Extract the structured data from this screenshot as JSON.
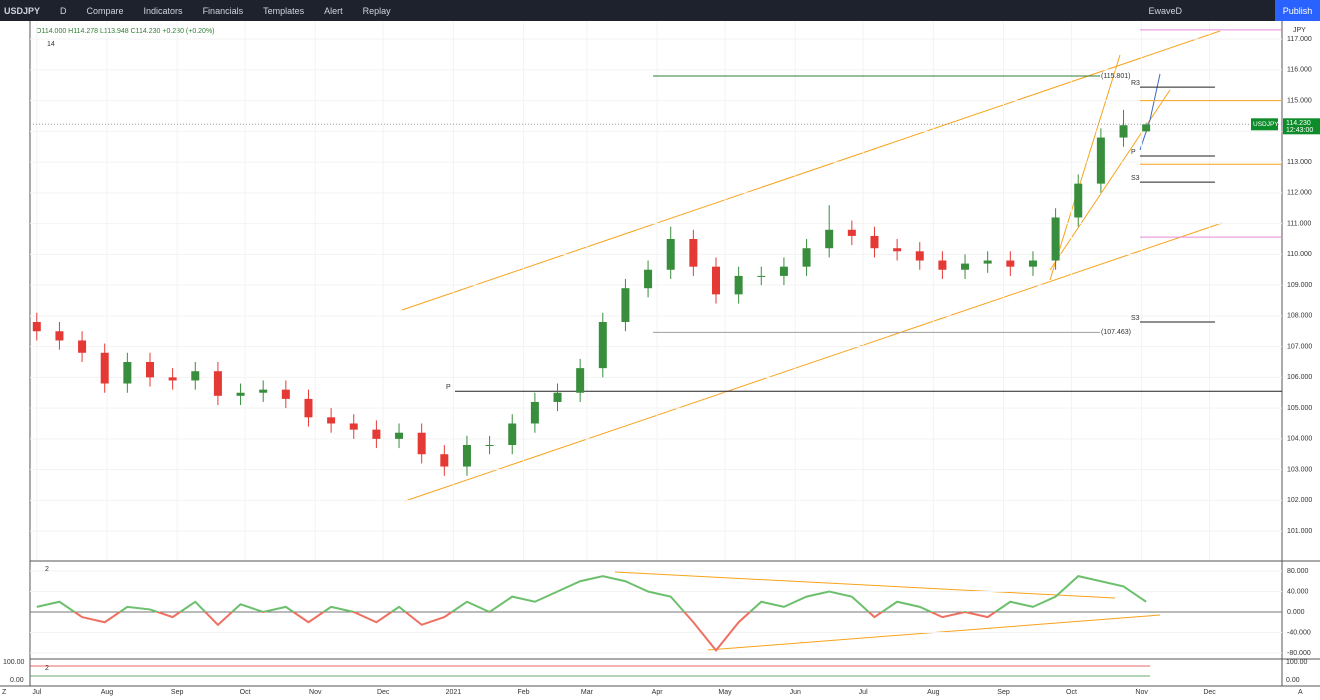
{
  "toolbar": {
    "symbol": "USDJPY",
    "interval": "D",
    "buttons": [
      "Compare",
      "Indicators",
      "Financials",
      "Templates",
      "Alert",
      "Replay"
    ],
    "user": "EwaveD",
    "publish": "Publish"
  },
  "chart_data": [
    {
      "type": "candlestick",
      "legend": "O114.000 H114.278 L113.948 C114.230 +0.230 (+0.20%)",
      "indicator_count": "14",
      "currency": "JPY",
      "up_color": "#388e3c",
      "down_color": "#e53935",
      "x": [
        0,
        10,
        20,
        30,
        40,
        50,
        60,
        70,
        80,
        90,
        100,
        110,
        120,
        130,
        140,
        150,
        160,
        170,
        180,
        190,
        200,
        210,
        220,
        230,
        240,
        250,
        260,
        270,
        280,
        290,
        300,
        310,
        320,
        330,
        340,
        350,
        360,
        370,
        380,
        390,
        400,
        410,
        420,
        430,
        440,
        450,
        460,
        470,
        480,
        490
      ],
      "open": [
        107.8,
        107.5,
        107.2,
        106.8,
        105.8,
        106.5,
        106.0,
        105.9,
        106.2,
        105.4,
        105.5,
        105.6,
        105.3,
        104.7,
        104.5,
        104.3,
        104.0,
        104.2,
        103.5,
        103.1,
        103.8,
        103.8,
        104.5,
        105.2,
        105.5,
        106.3,
        107.8,
        108.9,
        109.5,
        110.5,
        109.6,
        108.7,
        109.3,
        109.3,
        109.6,
        110.2,
        110.8,
        110.6,
        110.2,
        110.1,
        109.8,
        109.5,
        109.7,
        109.8,
        109.6,
        109.8,
        111.2,
        112.3,
        113.8,
        114.0
      ],
      "high": [
        108.1,
        107.8,
        107.5,
        107.1,
        106.8,
        106.8,
        106.3,
        106.5,
        106.5,
        105.8,
        105.9,
        105.9,
        105.6,
        105.0,
        104.8,
        104.6,
        104.5,
        104.5,
        103.8,
        104.1,
        104.1,
        104.8,
        105.5,
        105.8,
        106.6,
        108.1,
        109.2,
        109.8,
        110.9,
        110.8,
        109.9,
        109.6,
        109.6,
        109.9,
        110.5,
        111.6,
        111.1,
        110.9,
        110.5,
        110.4,
        110.1,
        110.0,
        110.1,
        110.1,
        110.1,
        111.5,
        112.6,
        114.1,
        114.7,
        114.278
      ],
      "low": [
        107.2,
        106.9,
        106.5,
        105.5,
        105.5,
        105.7,
        105.6,
        105.6,
        105.1,
        105.1,
        105.2,
        105.0,
        104.4,
        104.2,
        104.0,
        103.7,
        103.7,
        103.2,
        102.8,
        102.8,
        103.5,
        103.5,
        104.2,
        104.9,
        105.2,
        106.0,
        107.5,
        108.6,
        109.2,
        109.3,
        108.4,
        108.4,
        109.0,
        109.0,
        109.3,
        109.9,
        110.3,
        109.9,
        109.8,
        109.5,
        109.2,
        109.2,
        109.4,
        109.3,
        109.3,
        109.5,
        110.9,
        112.0,
        113.5,
        113.948
      ],
      "close": [
        107.5,
        107.2,
        106.8,
        105.8,
        106.5,
        106.0,
        105.9,
        106.2,
        105.4,
        105.5,
        105.6,
        105.3,
        104.7,
        104.5,
        104.3,
        104.0,
        104.2,
        103.5,
        103.1,
        103.8,
        103.8,
        104.5,
        105.2,
        105.5,
        106.3,
        107.8,
        108.9,
        109.5,
        110.5,
        109.6,
        108.7,
        109.3,
        109.3,
        109.6,
        110.2,
        110.8,
        110.6,
        110.2,
        110.1,
        109.8,
        109.5,
        109.7,
        109.8,
        109.6,
        109.8,
        111.2,
        112.3,
        113.8,
        114.2,
        114.23
      ],
      "last_price": {
        "symbol": "USDJPY",
        "value": 114.23,
        "label": "114.230",
        "countdown": "12:43:00"
      },
      "xlim": [
        -3,
        550
      ],
      "xticks": [
        {
          "value": 0,
          "label": "Jul"
        },
        {
          "value": 31,
          "label": "Aug"
        },
        {
          "value": 62,
          "label": "Sep"
        },
        {
          "value": 92,
          "label": "Oct"
        },
        {
          "value": 123,
          "label": "Nov"
        },
        {
          "value": 153,
          "label": "Dec"
        },
        {
          "value": 184,
          "label": "2021"
        },
        {
          "value": 215,
          "label": "Feb"
        },
        {
          "value": 243,
          "label": "Mar"
        },
        {
          "value": 274,
          "label": "Apr"
        },
        {
          "value": 304,
          "label": "May"
        },
        {
          "value": 335,
          "label": "Jun"
        },
        {
          "value": 365,
          "label": "Jul"
        },
        {
          "value": 396,
          "label": "Aug"
        },
        {
          "value": 427,
          "label": "Sep"
        },
        {
          "value": 457,
          "label": "Oct"
        },
        {
          "value": 488,
          "label": "Nov"
        },
        {
          "value": 518,
          "label": "Dec"
        }
      ],
      "ylim": [
        100.06,
        117.59
      ],
      "yticks": [
        {
          "value": 101,
          "label": "101.000"
        },
        {
          "value": 102,
          "label": "102.000"
        },
        {
          "value": 103,
          "label": "103.000"
        },
        {
          "value": 104,
          "label": "104.000"
        },
        {
          "value": 105,
          "label": "105.000"
        },
        {
          "value": 106,
          "label": "106.000"
        },
        {
          "value": 107,
          "label": "107.000"
        },
        {
          "value": 108,
          "label": "108.000"
        },
        {
          "value": 109,
          "label": "109.000"
        },
        {
          "value": 110,
          "label": "110.000"
        },
        {
          "value": 111,
          "label": "111.000"
        },
        {
          "value": 112,
          "label": "112.000"
        },
        {
          "value": 113,
          "label": "113.000"
        },
        {
          "value": 114,
          "label": "114.000"
        },
        {
          "value": 115,
          "label": "115.000"
        },
        {
          "value": 116,
          "label": "116.000"
        },
        {
          "value": 117,
          "label": "117.000"
        }
      ],
      "pivots": [
        {
          "label": "R3",
          "value": 115.44
        },
        {
          "label": "P",
          "value": 113.2
        },
        {
          "label": "S3",
          "value": 112.35
        },
        {
          "label": "S3",
          "value": 107.8
        },
        {
          "label": "P",
          "value": 105.55
        }
      ],
      "annotations": [
        {
          "text": "(115.801)",
          "value": 115.801,
          "color": "#2e7d32"
        },
        {
          "text": "(107.463)",
          "value": 107.463,
          "color": "#9e9e9e"
        }
      ],
      "levels": [
        {
          "value": 117.3,
          "color": "#e58ad9"
        },
        {
          "value": 115.0,
          "color": "#f7a21b"
        },
        {
          "value": 112.93,
          "color": "#f7a21b"
        },
        {
          "value": 110.56,
          "color": "#e58ad9"
        }
      ]
    },
    {
      "type": "oscillator",
      "legend": "2",
      "color_above": "#6cbf6c",
      "color_below": "#ef7061",
      "x": [
        0,
        10,
        20,
        30,
        40,
        50,
        60,
        70,
        80,
        90,
        100,
        110,
        120,
        130,
        140,
        150,
        160,
        170,
        180,
        190,
        200,
        210,
        220,
        230,
        240,
        250,
        260,
        270,
        280,
        290,
        300,
        310,
        320,
        330,
        340,
        350,
        360,
        370,
        380,
        390,
        400,
        410,
        420,
        430,
        440,
        450,
        460,
        470,
        480,
        490
      ],
      "values": [
        10,
        20,
        -10,
        -20,
        10,
        5,
        -10,
        20,
        -25,
        15,
        0,
        10,
        -20,
        10,
        0,
        -20,
        10,
        -25,
        -10,
        20,
        0,
        30,
        20,
        40,
        60,
        70,
        60,
        40,
        30,
        -20,
        -75,
        -20,
        20,
        10,
        30,
        40,
        30,
        -10,
        20,
        10,
        -10,
        0,
        -10,
        20,
        10,
        30,
        70,
        60,
        50,
        20
      ],
      "xlim": [
        -3,
        550
      ],
      "ylim": [
        -89.8,
        97.6
      ],
      "yticks": [
        {
          "value": 80,
          "label": "80.000"
        },
        {
          "value": 40,
          "label": "40.000"
        },
        {
          "value": 0,
          "label": "0.000"
        },
        {
          "value": -40,
          "label": "-40.000"
        },
        {
          "value": -80,
          "label": "-80.000"
        }
      ]
    }
  ],
  "lower_panel": {
    "legend": "2",
    "ticks": [
      "100.00",
      "0.00"
    ]
  },
  "footer": {
    "left": "Z",
    "right": "A"
  }
}
